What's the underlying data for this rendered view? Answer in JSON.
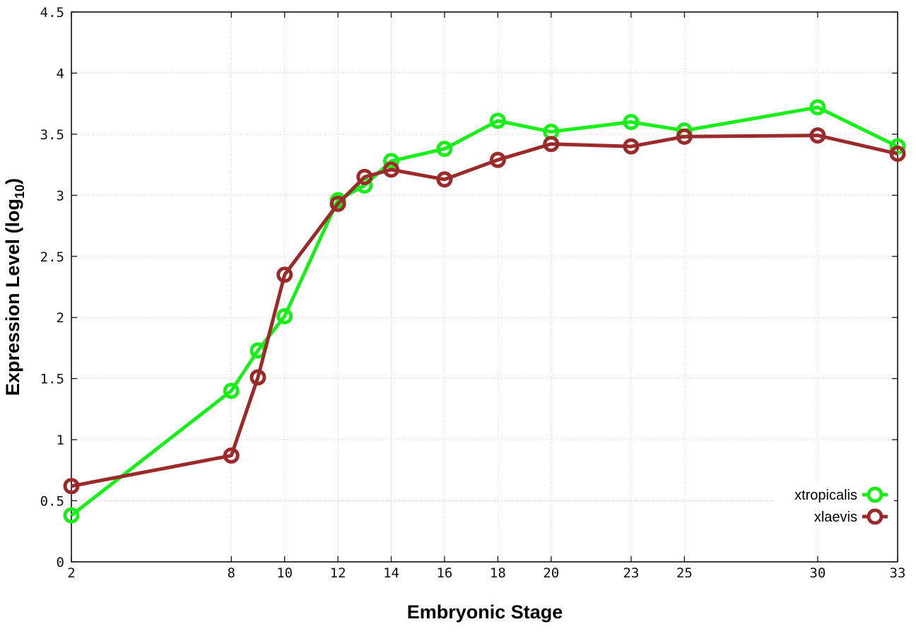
{
  "chart_data": {
    "type": "line",
    "title": "",
    "xlabel": "Embryonic Stage",
    "ylabel": "Expression Level (log",
    "ylabel_subscript": "10",
    "ylabel_suffix": ")",
    "x_ticks": [
      "2",
      "8",
      "10",
      "12",
      "14",
      "16",
      "18",
      "20",
      "23",
      "25",
      "30",
      "33"
    ],
    "x_tick_values": [
      2,
      8,
      10,
      12,
      14,
      16,
      18,
      20,
      23,
      25,
      30,
      33
    ],
    "xlim": [
      2,
      33
    ],
    "y_ticks": [
      "0",
      "0.5",
      "1",
      "1.5",
      "2",
      "2.5",
      "3",
      "3.5",
      "4",
      "4.5"
    ],
    "ylim": [
      0,
      4.5
    ],
    "grid": true,
    "legend_position": "bottom-right",
    "series": [
      {
        "name": "xtropicalis",
        "color": "#1aee1a",
        "x": [
          2,
          8,
          9,
          10,
          12,
          13,
          14,
          16,
          18,
          20,
          23,
          25,
          30,
          33
        ],
        "y": [
          0.38,
          1.4,
          1.73,
          2.01,
          2.96,
          3.08,
          3.28,
          3.38,
          3.61,
          3.52,
          3.6,
          3.53,
          3.72,
          3.4
        ]
      },
      {
        "name": "xlaevis",
        "color": "#9b2a2a",
        "x": [
          2,
          8,
          9,
          10,
          12,
          13,
          14,
          16,
          18,
          20,
          23,
          25,
          30,
          33
        ],
        "y": [
          0.62,
          0.87,
          1.51,
          2.35,
          2.93,
          3.15,
          3.21,
          3.13,
          3.29,
          3.42,
          3.4,
          3.48,
          3.49,
          3.34
        ]
      }
    ]
  }
}
